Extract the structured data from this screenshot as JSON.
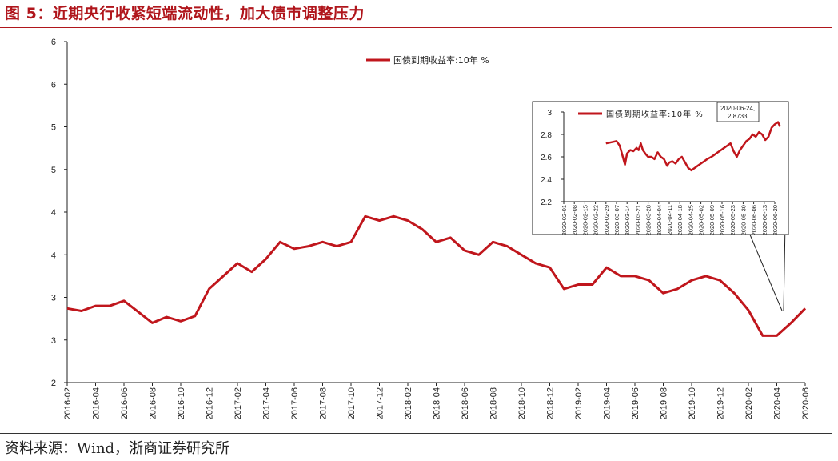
{
  "figure": {
    "title": "图 5：近期央行收紧短端流动性，加大债市调整压力",
    "source": "资料来源：Wind，浙商证券研究所"
  },
  "chart_data": [
    {
      "type": "line",
      "name": "main",
      "series_name": "国债到期收益率:10年 %",
      "color": "#c0161c",
      "y_tick_labels": [
        "2",
        "3",
        "3",
        "4",
        "4",
        "5",
        "5",
        "6",
        "6"
      ],
      "x_tick_labels": [
        "2016-02",
        "2016-04",
        "2016-06",
        "2016-08",
        "2016-10",
        "2016-12",
        "2017-02",
        "2017-04",
        "2017-06",
        "2017-08",
        "2017-10",
        "2017-12",
        "2018-02",
        "2018-04",
        "2018-06",
        "2018-08",
        "2018-10",
        "2018-12",
        "2019-02",
        "2019-04",
        "2019-06",
        "2019-08",
        "2019-10",
        "2019-12",
        "2020-02",
        "2020-04",
        "2020-06"
      ],
      "x": [
        "2016-02",
        "2016-03",
        "2016-04",
        "2016-05",
        "2016-06",
        "2016-07",
        "2016-08",
        "2016-09",
        "2016-10",
        "2016-11",
        "2016-12",
        "2017-01",
        "2017-02",
        "2017-03",
        "2017-04",
        "2017-05",
        "2017-06",
        "2017-07",
        "2017-08",
        "2017-09",
        "2017-10",
        "2017-11",
        "2017-12",
        "2018-01",
        "2018-02",
        "2018-03",
        "2018-04",
        "2018-05",
        "2018-06",
        "2018-07",
        "2018-08",
        "2018-09",
        "2018-10",
        "2018-11",
        "2018-12",
        "2019-01",
        "2019-02",
        "2019-03",
        "2019-04",
        "2019-05",
        "2019-06",
        "2019-07",
        "2019-08",
        "2019-09",
        "2019-10",
        "2019-11",
        "2019-12",
        "2020-01",
        "2020-02",
        "2020-03",
        "2020-04",
        "2020-05",
        "2020-06"
      ],
      "values": [
        2.87,
        2.84,
        2.9,
        2.9,
        2.96,
        2.83,
        2.7,
        2.77,
        2.72,
        2.78,
        3.1,
        3.25,
        3.4,
        3.3,
        3.45,
        3.65,
        3.57,
        3.6,
        3.65,
        3.6,
        3.65,
        3.95,
        3.9,
        3.95,
        3.9,
        3.8,
        3.65,
        3.7,
        3.55,
        3.5,
        3.65,
        3.6,
        3.5,
        3.4,
        3.35,
        3.1,
        3.15,
        3.15,
        3.35,
        3.25,
        3.25,
        3.2,
        3.05,
        3.1,
        3.2,
        3.25,
        3.2,
        3.05,
        2.85,
        2.55,
        2.55,
        2.7,
        2.87
      ],
      "ylim": [
        2.0,
        6.0
      ],
      "grid": false
    },
    {
      "type": "line",
      "name": "inset",
      "series_name": "国债到期收益率:10年 %",
      "color": "#c0161c",
      "y_tick_labels": [
        "2.2",
        "2.4",
        "2.6",
        "2.8",
        "3"
      ],
      "y_ticks": [
        2.2,
        2.4,
        2.6,
        2.8,
        3.0
      ],
      "ylim": [
        2.2,
        3.0
      ],
      "x_tick_labels": [
        "2020-02-01",
        "2020-02-08",
        "2020-02-15",
        "2020-02-22",
        "2020-02-29",
        "2020-03-07",
        "2020-03-14",
        "2020-03-21",
        "2020-03-28",
        "2020-04-04",
        "2020-04-11",
        "2020-04-18",
        "2020-04-25",
        "2020-05-02",
        "2020-05-09",
        "2020-05-16",
        "2020-05-23",
        "2020-05-30",
        "2020-06-06",
        "2020-06-13",
        "2020-06-20"
      ],
      "x_index": [
        4.0,
        4.5,
        5.0,
        5.3,
        5.6,
        5.8,
        6.0,
        6.3,
        6.6,
        6.9,
        7.1,
        7.3,
        7.5,
        7.8,
        8.0,
        8.3,
        8.6,
        8.9,
        9.2,
        9.5,
        9.8,
        10.0,
        10.3,
        10.6,
        10.9,
        11.2,
        11.5,
        11.8,
        12.1,
        12.4,
        12.7,
        13.0,
        13.3,
        13.6,
        14.0,
        14.3,
        14.6,
        14.9,
        15.2,
        15.5,
        15.8,
        16.1,
        16.4,
        16.7,
        17.0,
        17.3,
        17.6,
        17.9,
        18.2,
        18.5,
        18.8,
        19.1,
        19.4,
        19.7,
        20.0,
        20.3,
        20.5
      ],
      "values": [
        2.72,
        2.73,
        2.74,
        2.7,
        2.6,
        2.53,
        2.63,
        2.66,
        2.65,
        2.68,
        2.66,
        2.72,
        2.66,
        2.62,
        2.6,
        2.6,
        2.58,
        2.64,
        2.6,
        2.58,
        2.52,
        2.55,
        2.56,
        2.54,
        2.58,
        2.6,
        2.55,
        2.5,
        2.48,
        2.5,
        2.52,
        2.54,
        2.56,
        2.58,
        2.6,
        2.62,
        2.64,
        2.66,
        2.68,
        2.7,
        2.72,
        2.65,
        2.6,
        2.66,
        2.7,
        2.74,
        2.76,
        2.8,
        2.78,
        2.82,
        2.8,
        2.75,
        2.78,
        2.86,
        2.89,
        2.91,
        2.87
      ],
      "annotation": {
        "date": "2020-06-24,",
        "value": "2.8733"
      }
    }
  ]
}
